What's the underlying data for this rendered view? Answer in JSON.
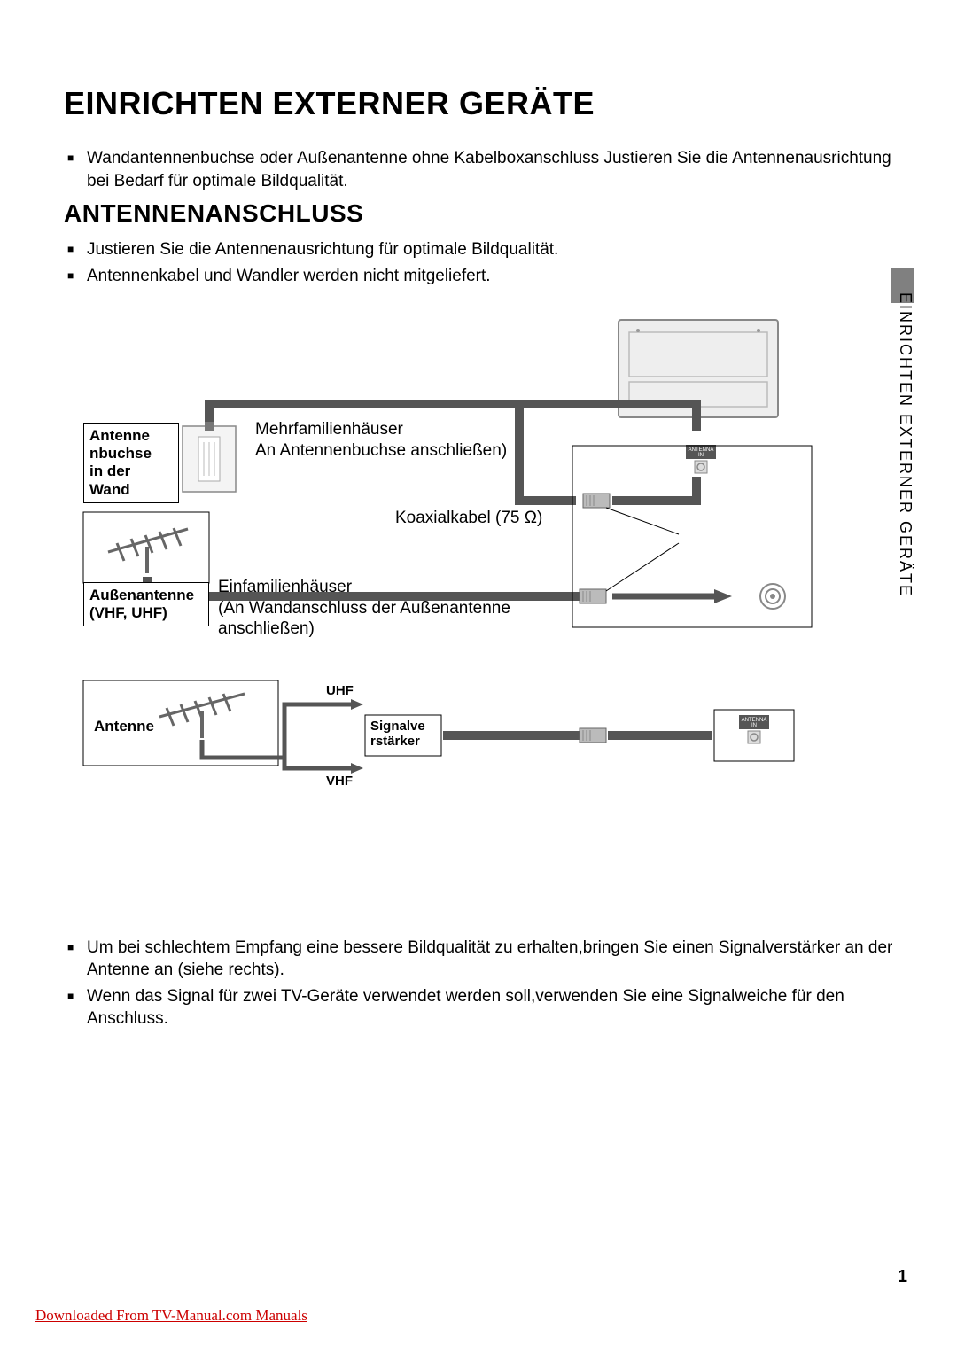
{
  "title": "EINRICHTEN EXTERNER GERÄTE",
  "intro_bullets": [
    "Wandantennenbuchse oder Außenantenne ohne Kabelboxanschluss Justieren Sie die Antennenausrichtung bei Bedarf für optimale Bildqualität."
  ],
  "section_title": "ANTENNENANSCHLUSS",
  "section_bullets": [
    "Justieren Sie die Antennenausrichtung für optimale Bildqualität.",
    "Antennenkabel und Wandler werden nicht mitgeliefert."
  ],
  "diagram": {
    "wall_socket_label": "Antenne\nnbuchse\nin der\nWand",
    "multi_family": "Mehrfamilienhäuser",
    "multi_family_sub": "An Antennenbuchse anschließen)",
    "outdoor_antenna_label": "Außenantenne\n(VHF, UHF)",
    "single_family": "Einfamilienhäuser",
    "single_family_sub": "(An Wandanschluss der Außenantenne anschließen)",
    "coax": "Koaxialkabel (75 Ω)",
    "antenna_label": "Antenne",
    "uhf": "UHF",
    "vhf": "VHF",
    "amplifier": "Signalve\nrstärker",
    "antenna_in": "ANTENNA\nIN"
  },
  "bottom_bullets": [
    "Um bei schlechtem Empfang eine bessere Bildqualität zu erhalten,bringen Sie einen Signalverstärker an der Antenne an (siehe rechts).",
    "Wenn das Signal für zwei TV-Geräte verwendet werden soll,verwenden Sie eine Signalweiche für den Anschluss."
  ],
  "side_label": "EINRICHTEN EXTERNER GERÄTE",
  "page_number": "1",
  "footer": "Downloaded From TV-Manual.com Manuals",
  "colors": {
    "text": "#000000",
    "link": "#cc0000",
    "tab": "#808080",
    "cable": "#555555",
    "tv_fill": "#eeeeee",
    "tv_stroke": "#888888"
  }
}
